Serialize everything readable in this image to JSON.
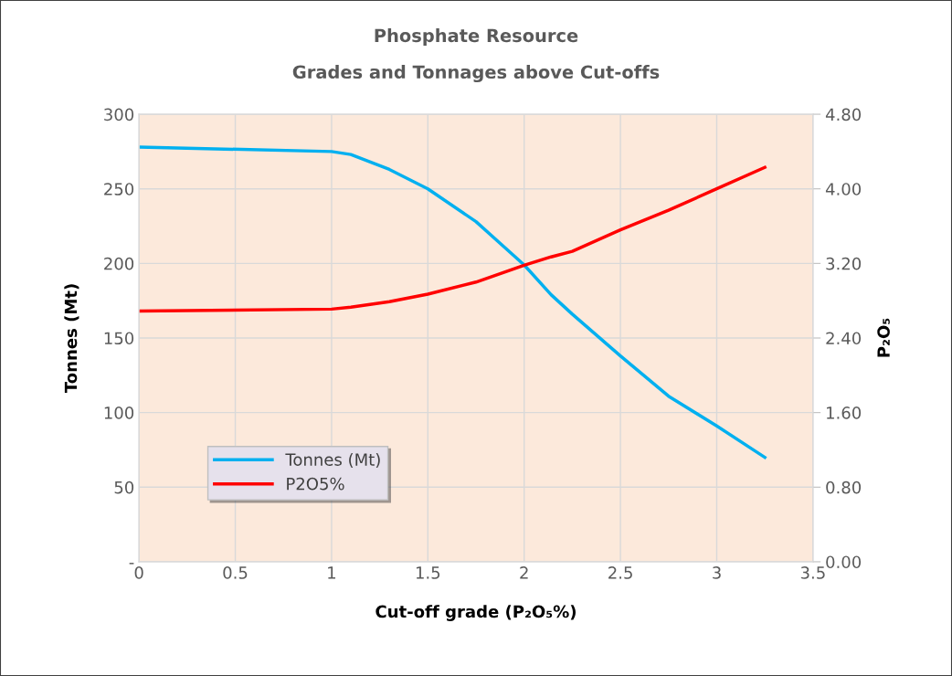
{
  "chart_data": {
    "type": "line",
    "title": "Phosphate Resource",
    "subtitle": "Grades and Tonnages above Cut-offs",
    "xlabel": "Cut-off grade (P₂O₅%)",
    "ylabel": "Tonnes (Mt)",
    "y2label": "P₂O₅",
    "x": [
      0,
      1,
      1.1,
      1.3,
      1.5,
      1.75,
      2,
      2.14,
      2.25,
      2.5,
      2.75,
      3,
      3.25
    ],
    "series": [
      {
        "name": "Tonnes (Mt)",
        "color": "#00b0f0",
        "values": [
          278,
          275,
          273,
          263,
          250,
          228,
          199,
          179,
          166,
          138,
          111,
          91,
          70
        ]
      },
      {
        "name": "P2O5%",
        "color": "#ff0000",
        "axis": "y2",
        "values": [
          2.69,
          2.71,
          2.73,
          2.79,
          2.87,
          3.0,
          3.18,
          3.27,
          3.33,
          3.56,
          3.77,
          4.0,
          4.23
        ]
      }
    ],
    "xlim": [
      0,
      3.5
    ],
    "xticks": [
      0,
      0.5,
      1,
      1.5,
      2,
      2.5,
      3,
      3.5
    ],
    "ylim": [
      0,
      300
    ],
    "yticks": [
      {
        "value": 0,
        "label": "-"
      },
      50,
      100,
      150,
      200,
      250,
      300
    ],
    "y2lim": [
      0,
      4.8
    ],
    "y2ticks": [
      {
        "value": 0,
        "label": "0.00"
      },
      {
        "value": 0.8,
        "label": "0.80"
      },
      {
        "value": 1.6,
        "label": "1.60"
      },
      {
        "value": 2.4,
        "label": "2.40"
      },
      {
        "value": 3.2,
        "label": "3.20"
      },
      {
        "value": 4.0,
        "label": "4.00"
      },
      {
        "value": 4.8,
        "label": "4.80"
      }
    ],
    "grid": true,
    "legend": "lower left",
    "marker": "none",
    "line_style": "solid"
  }
}
